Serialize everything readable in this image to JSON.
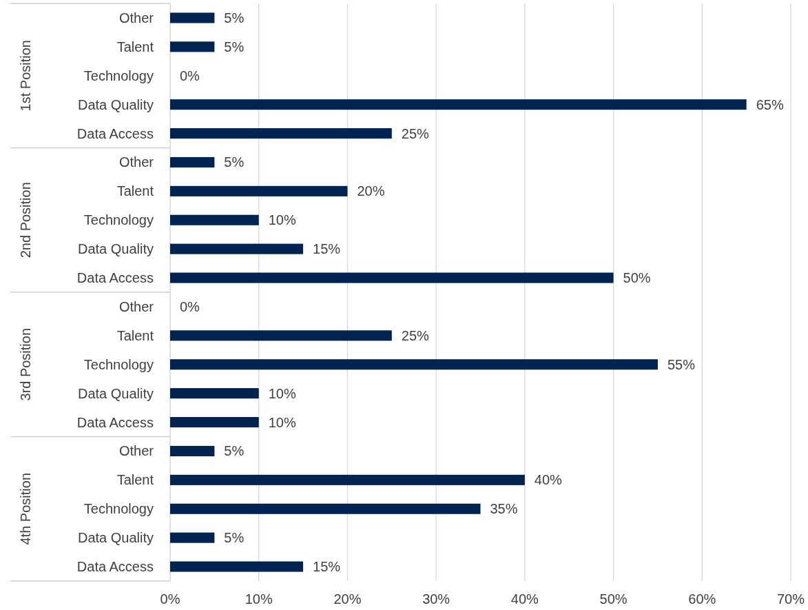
{
  "chart_data": {
    "type": "bar",
    "orientation": "horizontal",
    "categories": [
      "Other",
      "Talent",
      "Technology",
      "Data Quality",
      "Data Access",
      "Other",
      "Talent",
      "Technology",
      "Data Quality",
      "Data Access",
      "Other",
      "Talent",
      "Technology",
      "Data Quality",
      "Data Access",
      "Other",
      "Talent",
      "Technology",
      "Data Quality",
      "Data Access"
    ],
    "values": [
      5,
      5,
      0,
      65,
      25,
      5,
      20,
      10,
      15,
      50,
      0,
      25,
      55,
      10,
      10,
      5,
      40,
      35,
      5,
      15
    ],
    "value_labels": [
      "5%",
      "5%",
      "0%",
      "65%",
      "25%",
      "5%",
      "20%",
      "10%",
      "15%",
      "50%",
      "0%",
      "25%",
      "55%",
      "10%",
      "10%",
      "5%",
      "40%",
      "35%",
      "5%",
      "15%"
    ],
    "color": "#002452",
    "xlim": [
      0,
      70
    ],
    "xticks": [
      {
        "value": 0,
        "label": "0%"
      },
      {
        "value": 10,
        "label": "10%"
      },
      {
        "value": 20,
        "label": "20%"
      },
      {
        "value": 30,
        "label": "30%"
      },
      {
        "value": 40,
        "label": "40%"
      },
      {
        "value": 50,
        "label": "50%"
      },
      {
        "value": 60,
        "label": "60%"
      },
      {
        "value": 70,
        "label": "70%"
      }
    ],
    "grid": "x",
    "annotations": [
      "1st Position",
      "2nd Position",
      "3rd Position",
      "4th Position"
    ]
  }
}
